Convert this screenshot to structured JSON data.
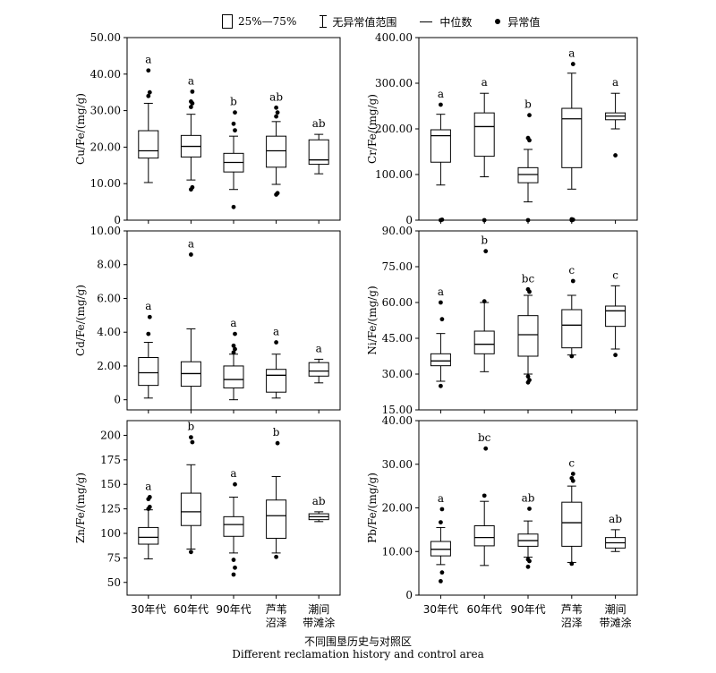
{
  "legend": {
    "box": "25%—75%",
    "whisker": "无异常值范围",
    "median": "中位数",
    "outlier": "异常值"
  },
  "x_title_cn": "不同围垦历史与对照区",
  "x_title_en": "Different reclamation history and control area",
  "chart_data": [
    {
      "type": "box",
      "ylabel": "Cu/Fe/(mg/g)",
      "ylim": [
        0,
        50
      ],
      "ticks": [
        0,
        10,
        20,
        30,
        40,
        50
      ],
      "tick_labels": [
        "0",
        "10.00",
        "20.00",
        "30.00",
        "40.00",
        "50.00"
      ],
      "categories": [
        "30年代",
        "60年代",
        "90年代",
        "芦苇沼泽",
        "潮间带滩涂"
      ],
      "boxes": [
        {
          "min": 10.3,
          "q1": 17,
          "median": 19,
          "q3": 24.5,
          "max": 32,
          "outliers": [
            34,
            35,
            41
          ],
          "letter": "a"
        },
        {
          "min": 11,
          "q1": 17.3,
          "median": 20.2,
          "q3": 23.2,
          "max": 29,
          "outliers": [
            8.4,
            9,
            31,
            32,
            32.5,
            35.2
          ],
          "letter": "a"
        },
        {
          "min": 8.4,
          "q1": 13.2,
          "median": 15.8,
          "q3": 18.3,
          "max": 23,
          "outliers": [
            3.6,
            24.6,
            26.4,
            29.5
          ],
          "letter": "b"
        },
        {
          "min": 9.8,
          "q1": 14.5,
          "median": 19,
          "q3": 23,
          "max": 27,
          "outliers": [
            7,
            7.4,
            28.4,
            29.5,
            30.8
          ],
          "letter": "ab"
        },
        {
          "min": 12.7,
          "q1": 15.3,
          "median": 16.5,
          "q3": 22,
          "max": 23.5,
          "outliers": [],
          "letter": "ab"
        }
      ]
    },
    {
      "type": "box",
      "ylabel": "Cr/Fe/(mg/g)",
      "ylim": [
        0,
        400
      ],
      "ticks": [
        0,
        100,
        200,
        300,
        400
      ],
      "tick_labels": [
        "0",
        "100.00",
        "200.00",
        "300.00",
        "400.00"
      ],
      "categories": [
        "30年代",
        "60年代",
        "90年代",
        "芦苇沼泽",
        "潮间带滩涂"
      ],
      "boxes": [
        {
          "min": 77,
          "q1": 127,
          "median": 185,
          "q3": 198,
          "max": 232,
          "outliers": [
            0,
            1,
            253
          ],
          "letter": "a"
        },
        {
          "min": 95,
          "q1": 140,
          "median": 205,
          "q3": 235,
          "max": 278,
          "outliers": [
            0
          ],
          "letter": "a"
        },
        {
          "min": 40,
          "q1": 82,
          "median": 100,
          "q3": 115,
          "max": 155,
          "outliers": [
            0,
            175,
            180,
            230
          ],
          "letter": "b"
        },
        {
          "min": 68,
          "q1": 115,
          "median": 222,
          "q3": 245,
          "max": 322,
          "outliers": [
            0,
            1,
            2,
            342
          ],
          "letter": "a"
        },
        {
          "min": 200,
          "q1": 220,
          "median": 228,
          "q3": 235,
          "max": 278,
          "outliers": [
            142
          ],
          "letter": "a"
        }
      ]
    },
    {
      "type": "box",
      "ylabel": "Cd/Fe/(mg/g)",
      "ylim": [
        -0.6,
        10
      ],
      "ticks": [
        0,
        2,
        4,
        6,
        8,
        10
      ],
      "tick_labels": [
        "0",
        "2.00",
        "4.00",
        "6.00",
        "8.00",
        "10.00"
      ],
      "categories": [
        "30年代",
        "60年代",
        "90年代",
        "芦苇沼泽",
        "潮间带滩涂"
      ],
      "boxes": [
        {
          "min": 0.1,
          "q1": 0.85,
          "median": 1.6,
          "q3": 2.5,
          "max": 3.4,
          "outliers": [
            3.9,
            4.9
          ],
          "letter": "a"
        },
        {
          "min": -0.6,
          "q1": 0.8,
          "median": 1.55,
          "q3": 2.25,
          "max": 4.2,
          "outliers": [
            8.6
          ],
          "letter": "a"
        },
        {
          "min": 0,
          "q1": 0.7,
          "median": 1.2,
          "q3": 2,
          "max": 2.7,
          "outliers": [
            2.8,
            3.0,
            3.2,
            3.9
          ],
          "letter": "a"
        },
        {
          "min": 0.1,
          "q1": 0.45,
          "median": 1.45,
          "q3": 1.8,
          "max": 2.7,
          "outliers": [
            3.4
          ],
          "letter": "a"
        },
        {
          "min": 1.0,
          "q1": 1.4,
          "median": 1.7,
          "q3": 2.2,
          "max": 2.4,
          "outliers": [],
          "letter": "a"
        }
      ]
    },
    {
      "type": "box",
      "ylabel": "Ni/Fe/(mg/g)",
      "ylim": [
        15,
        90
      ],
      "ticks": [
        15,
        30,
        45,
        60,
        75,
        90
      ],
      "tick_labels": [
        "15.00",
        "30.00",
        "45.00",
        "60.00",
        "75.00",
        "90.00"
      ],
      "categories": [
        "30年代",
        "60年代",
        "90年代",
        "芦苇沼泽",
        "潮间带滩涂"
      ],
      "boxes": [
        {
          "min": 27,
          "q1": 33.5,
          "median": 35.5,
          "q3": 38.5,
          "max": 47,
          "outliers": [
            25,
            53,
            60
          ],
          "letter": "a"
        },
        {
          "min": 31,
          "q1": 38.5,
          "median": 42.5,
          "q3": 48,
          "max": 60,
          "outliers": [
            60.5,
            81.5
          ],
          "letter": "b"
        },
        {
          "min": 30,
          "q1": 37.5,
          "median": 46.5,
          "q3": 54.5,
          "max": 63,
          "outliers": [
            26.5,
            27.5,
            29,
            64.5,
            65.5
          ],
          "letter": "bc"
        },
        {
          "min": 38,
          "q1": 41,
          "median": 50.5,
          "q3": 57,
          "max": 63,
          "outliers": [
            37.5,
            69
          ],
          "letter": "c"
        },
        {
          "min": 40.5,
          "q1": 50,
          "median": 56.5,
          "q3": 58.5,
          "max": 67,
          "outliers": [
            38
          ],
          "letter": "c"
        }
      ]
    },
    {
      "type": "box",
      "ylabel": "Zn/Fe/(mg/g)",
      "ylim": [
        37,
        215
      ],
      "ticks": [
        50,
        75,
        100,
        125,
        150,
        175,
        200
      ],
      "tick_labels": [
        "50",
        "75",
        "100",
        "125",
        "150",
        "175",
        "200"
      ],
      "categories": [
        "30年代",
        "60年代",
        "90年代",
        "芦苇沼泽",
        "潮间带滩涂"
      ],
      "boxes": [
        {
          "min": 74,
          "q1": 89,
          "median": 96,
          "q3": 106,
          "max": 124,
          "outliers": [
            125,
            127,
            135,
            137
          ],
          "letter": "a"
        },
        {
          "min": 84,
          "q1": 108,
          "median": 122,
          "q3": 141,
          "max": 170,
          "outliers": [
            81,
            193,
            198
          ],
          "letter": "b"
        },
        {
          "min": 80,
          "q1": 97,
          "median": 109,
          "q3": 117,
          "max": 137,
          "outliers": [
            58,
            65,
            73,
            150
          ],
          "letter": "a"
        },
        {
          "min": 80,
          "q1": 95,
          "median": 118,
          "q3": 134,
          "max": 158,
          "outliers": [
            76,
            192
          ],
          "letter": "b"
        },
        {
          "min": 112,
          "q1": 114,
          "median": 117,
          "q3": 120,
          "max": 122,
          "outliers": [],
          "letter": "ab"
        }
      ]
    },
    {
      "type": "box",
      "ylabel": "Pb/Fe/(mg/g)",
      "ylim": [
        0,
        40
      ],
      "ticks": [
        0,
        10,
        20,
        30,
        40
      ],
      "tick_labels": [
        "0",
        "10.00",
        "20.00",
        "30.00",
        "40.00"
      ],
      "categories": [
        "30年代",
        "60年代",
        "90年代",
        "芦苇沼泽",
        "潮间带滩涂"
      ],
      "boxes": [
        {
          "min": 7,
          "q1": 9,
          "median": 10.5,
          "q3": 12.3,
          "max": 15.5,
          "outliers": [
            3.2,
            5.2,
            16.7,
            19.7
          ],
          "letter": "a"
        },
        {
          "min": 6.8,
          "q1": 11.3,
          "median": 13.2,
          "q3": 15.9,
          "max": 21.5,
          "outliers": [
            22.8,
            33.6
          ],
          "letter": "bc"
        },
        {
          "min": 8.7,
          "q1": 11.2,
          "median": 12.5,
          "q3": 14,
          "max": 17,
          "outliers": [
            6.5,
            7.8,
            8.2,
            19.8
          ],
          "letter": "ab"
        },
        {
          "min": 7.5,
          "q1": 11.2,
          "median": 16.6,
          "q3": 21.3,
          "max": 25,
          "outliers": [
            7.2,
            26.2,
            26.8,
            27.8
          ],
          "letter": "c"
        },
        {
          "min": 10,
          "q1": 10.8,
          "median": 12,
          "q3": 13.2,
          "max": 15,
          "outliers": [],
          "letter": "ab"
        }
      ]
    }
  ]
}
